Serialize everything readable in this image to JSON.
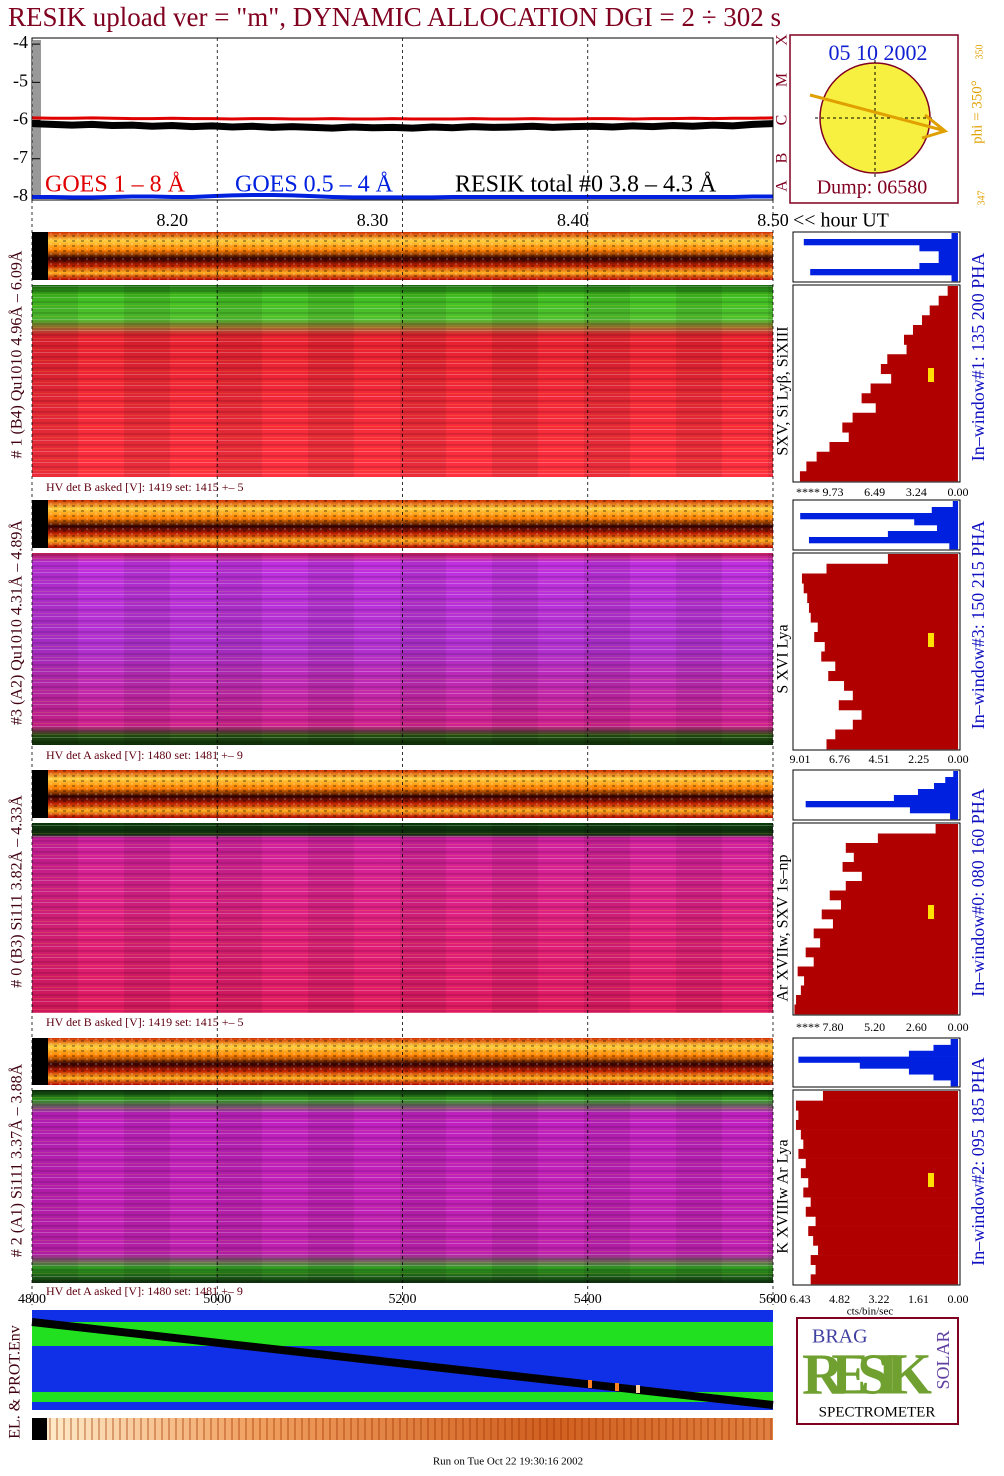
{
  "title": "RESIK upload ver = \"m\", DYNAMIC ALLOCATION  DGI =   2 ÷ 302 s",
  "chart_data": [
    {
      "type": "line",
      "x": [
        8.13,
        8.14,
        8.15,
        8.16,
        8.17,
        8.18,
        8.19,
        8.2,
        8.21,
        8.22,
        8.23,
        8.24,
        8.25,
        8.26,
        8.27,
        8.28,
        8.29,
        8.3,
        8.31,
        8.32,
        8.33,
        8.34,
        8.35,
        8.36,
        8.37,
        8.38,
        8.39,
        8.4,
        8.41,
        8.42,
        8.43,
        8.44,
        8.45,
        8.46,
        8.47,
        8.48,
        8.49,
        8.5
      ],
      "xlim": [
        8.13,
        8.5
      ],
      "xticks": [
        {
          "value": 8.2,
          "label": "8.20"
        },
        {
          "value": 8.3,
          "label": "8.30"
        },
        {
          "value": 8.4,
          "label": "8.40"
        },
        {
          "value": 8.5,
          "label": "8.50"
        }
      ],
      "x_label": "<< hour UT",
      "ylim": [
        -8.08,
        -3.84
      ],
      "yticks": [
        -4,
        -5,
        -6,
        -7,
        -8
      ],
      "series": [
        {
          "name": "GOES 1 – 8 Å",
          "color": "#e00000",
          "values": [
            -5.93,
            -5.94,
            -5.94,
            -5.93,
            -5.94,
            -5.95,
            -5.95,
            -5.94,
            -5.95,
            -5.95,
            -5.96,
            -5.95,
            -5.95,
            -5.96,
            -5.96,
            -5.95,
            -5.96,
            -5.96,
            -5.95,
            -5.96,
            -5.96,
            -5.96,
            -5.95,
            -5.96,
            -5.96,
            -5.95,
            -5.96,
            -5.96,
            -5.95,
            -5.95,
            -5.96,
            -5.95,
            -5.95,
            -5.94,
            -5.95,
            -5.94,
            -5.94,
            -5.93
          ]
        },
        {
          "name": "GOES 0.5 – 4 Å",
          "color": "#0020e0",
          "values": [
            -8.0,
            -8.0,
            -8.01,
            -8.01,
            -8.0,
            -7.99,
            -7.99,
            -8.0,
            -8.0,
            -7.98,
            -7.96,
            -7.95,
            -7.95,
            -7.96,
            -7.98,
            -8.0,
            -8.01,
            -8.01,
            -8.01,
            -8.01,
            -8.01,
            -8.0,
            -8.0,
            -8.0,
            -8.0,
            -8.0,
            -8.0,
            -8.0,
            -8.0,
            -8.0,
            -8.0,
            -8.0,
            -8.0,
            -8.0,
            -8.0,
            -8.0,
            -7.99,
            -7.99
          ]
        },
        {
          "name": "RESIK total #0  3.8 – 4.3 Å",
          "color": "#000000",
          "values": [
            -6.08,
            -6.1,
            -6.12,
            -6.1,
            -6.13,
            -6.12,
            -6.15,
            -6.13,
            -6.16,
            -6.14,
            -6.17,
            -6.15,
            -6.18,
            -6.16,
            -6.18,
            -6.2,
            -6.17,
            -6.19,
            -6.18,
            -6.2,
            -6.17,
            -6.19,
            -6.16,
            -6.18,
            -6.17,
            -6.15,
            -6.18,
            -6.16,
            -6.15,
            -6.17,
            -6.14,
            -6.16,
            -6.13,
            -6.15,
            -6.12,
            -6.14,
            -6.1,
            -6.08
          ]
        }
      ]
    },
    {
      "type": "channel_axis",
      "xlim": [
        4800,
        5600
      ],
      "xticks": [
        4800,
        5000,
        5200,
        5400,
        5600
      ],
      "grid": true,
      "y_label": "EL. & PROT.Env"
    }
  ],
  "sun": {
    "date": "05 10 2002",
    "dump": "Dump: 06580",
    "phi": "phi = 350°",
    "phi_sup": "350",
    "corner": "347",
    "classes": [
      "X",
      "M",
      "C",
      "B",
      "A"
    ]
  },
  "panels": [
    {
      "left_label": "# 1 (B4) Qu1010 4.96Å – 6.09Å",
      "right_label": "SXV, Si Lyβ, SiXIII",
      "window_label": "In–window#1:  135 200 PHA",
      "hv": "HV det B asked [V]:  1419 set:  1415 +–    5",
      "hist": {
        "xlim": [
          12.84,
          -0.16
        ],
        "overflow_label": "****",
        "xticks": [
          9.73,
          6.49,
          3.24,
          {
            "value": 0,
            "label": "0.00"
          }
        ],
        "profile": [
          0.8,
          1.5,
          2.2,
          2.8,
          3.5,
          4.2,
          4.0,
          5.5,
          6.0,
          5.2,
          6.8,
          7.5,
          6.4,
          8.2,
          9.0,
          8.5,
          10.0,
          11.0,
          11.8,
          12.3
        ],
        "blue_profile": [
          0.5,
          12.0,
          3.0,
          1.5,
          1.5,
          3.0,
          11.5,
          0.5
        ]
      }
    },
    {
      "left_label": "#3 (A2) Qu1010  4.31Å – 4.89Å",
      "right_label": "S XVI Lya",
      "window_label": "In–window#3:  150 215 PHA",
      "hv": "HV det A asked [V]:  1480 set:  1481 +–    9",
      "hist": {
        "xlim": [
          9.41,
          -0.11
        ],
        "xticks": [
          9.01,
          6.76,
          4.51,
          2.25,
          {
            "value": 0,
            "label": "0.00"
          }
        ],
        "profile": [
          4.0,
          7.5,
          8.9,
          8.8,
          8.6,
          8.5,
          8.4,
          8.0,
          8.2,
          7.6,
          7.8,
          7.0,
          7.4,
          6.5,
          6.0,
          6.8,
          5.5,
          6.0,
          7.0,
          7.5
        ],
        "blue_profile": [
          0.3,
          1.5,
          9.0,
          2.5,
          1.2,
          4.0,
          8.5,
          0.5
        ]
      }
    },
    {
      "left_label": "# 0 (B3) Si111  3.82Å – 4.33Å",
      "right_label": "Ar XVIIw, SXV 1s–np",
      "window_label": "In–window#0:  080 160 PHA",
      "hv": "HV det B asked [V]:  1419 set:  1415 +–    5",
      "hist": {
        "xlim": [
          10.29,
          -0.12
        ],
        "overflow_label": "****",
        "xticks": [
          {
            "value": 7.8,
            "label": "7.80"
          },
          {
            "value": 5.2,
            "label": "5.20"
          },
          {
            "value": 2.6,
            "label": "2.60"
          },
          {
            "value": 0,
            "label": "0.00"
          }
        ],
        "profile": [
          1.4,
          5.0,
          7.0,
          6.5,
          7.2,
          6.0,
          7.0,
          8.0,
          7.3,
          8.5,
          7.8,
          9.0,
          8.6,
          9.5,
          9.0,
          10.0,
          9.6,
          9.8,
          10.1,
          10.2
        ],
        "blue_profile": [
          0.3,
          0.8,
          1.5,
          2.5,
          4.0,
          9.5,
          3.0,
          0.5
        ]
      }
    },
    {
      "left_label": "# 2 (A1) Si111  3.37Å – 3.88Å",
      "right_label": "K XVIIIw  Ar Lya",
      "window_label": "In–window#2:  095 185 PHA",
      "hv": "HV det A asked [V]:  1480 set:  1481 +–    9",
      "hist": {
        "xlim": [
          6.72,
          -0.08
        ],
        "xticks": [
          6.43,
          4.82,
          3.22,
          1.61,
          {
            "value": 0,
            "label": "0.00"
          }
        ],
        "profile": [
          5.5,
          6.6,
          6.5,
          6.6,
          6.4,
          6.3,
          6.5,
          6.2,
          6.4,
          6.1,
          6.3,
          6.0,
          6.2,
          5.8,
          6.1,
          5.9,
          5.7,
          6.0,
          5.8,
          6.0
        ],
        "blue_profile": [
          0.3,
          1.0,
          2.0,
          6.5,
          4.0,
          2.0,
          1.0,
          0.3
        ]
      }
    }
  ],
  "hist_axis_label": "cts/bin/sec",
  "logo": {
    "main": "RESIK",
    "top": "BRAG",
    "side": "SOLAR",
    "caption": "SPECTROMETER"
  },
  "footer": "Run on Tue Oct 22 19:30:16 2002"
}
